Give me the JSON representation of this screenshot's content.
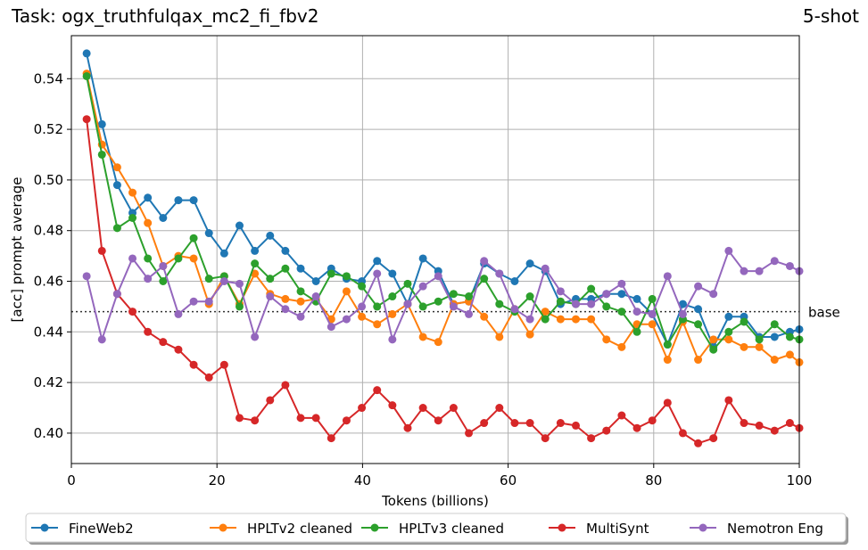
{
  "title": "Task: ogx_truthfulqax_mc2_fi_fbv2",
  "shots": "5-shot",
  "chart_data": {
    "type": "line",
    "xlabel": "Tokens (billions)",
    "ylabel": "[acc] prompt average",
    "xlim": [
      0,
      100
    ],
    "ylim": [
      0.388,
      0.557
    ],
    "xticks": [
      0,
      20,
      40,
      60,
      80,
      100
    ],
    "yticks": [
      0.4,
      0.42,
      0.44,
      0.46,
      0.48,
      0.5,
      0.52,
      0.54
    ],
    "grid": true,
    "legend_position": "bottom",
    "baseline": {
      "label": "base",
      "value": 0.448
    },
    "x": [
      2.1,
      4.2,
      6.3,
      8.4,
      10.5,
      12.6,
      14.7,
      16.8,
      18.9,
      21,
      23.1,
      25.2,
      27.3,
      29.4,
      31.5,
      33.6,
      35.7,
      37.8,
      39.9,
      42,
      44.1,
      46.2,
      48.3,
      50.4,
      52.5,
      54.6,
      56.7,
      58.8,
      60.9,
      63,
      65.1,
      67.2,
      69.3,
      71.4,
      73.5,
      75.6,
      77.7,
      79.8,
      81.9,
      84,
      86.1,
      88.2,
      90.3,
      92.4,
      94.5,
      96.6,
      98.7,
      100
    ],
    "series": [
      {
        "name": "FineWeb2",
        "color": "#1f77b4",
        "values": [
          0.55,
          0.522,
          0.498,
          0.487,
          0.493,
          0.485,
          0.492,
          0.492,
          0.479,
          0.471,
          0.482,
          0.472,
          0.478,
          0.472,
          0.465,
          0.46,
          0.465,
          0.461,
          0.46,
          0.468,
          0.463,
          0.451,
          0.469,
          0.464,
          0.451,
          0.452,
          0.467,
          0.463,
          0.46,
          0.467,
          0.464,
          0.451,
          0.453,
          0.453,
          0.455,
          0.455,
          0.453,
          0.447,
          0.435,
          0.451,
          0.449,
          0.434,
          0.446,
          0.446,
          0.438,
          0.438,
          0.44,
          0.441
        ]
      },
      {
        "name": "HPLTv2 cleaned",
        "color": "#ff7f0e",
        "values": [
          0.542,
          0.514,
          0.505,
          0.495,
          0.483,
          0.466,
          0.47,
          0.469,
          0.451,
          0.462,
          0.451,
          0.463,
          0.455,
          0.453,
          0.452,
          0.453,
          0.445,
          0.456,
          0.446,
          0.443,
          0.447,
          0.451,
          0.438,
          0.436,
          0.451,
          0.452,
          0.446,
          0.438,
          0.449,
          0.439,
          0.448,
          0.445,
          0.445,
          0.445,
          0.437,
          0.434,
          0.443,
          0.443,
          0.429,
          0.444,
          0.429,
          0.437,
          0.437,
          0.434,
          0.434,
          0.429,
          0.431,
          0.428
        ]
      },
      {
        "name": "HPLTv3 cleaned",
        "color": "#2ca02c",
        "values": [
          0.541,
          0.51,
          0.481,
          0.485,
          0.469,
          0.46,
          0.469,
          0.477,
          0.461,
          0.462,
          0.45,
          0.467,
          0.461,
          0.465,
          0.456,
          0.452,
          0.463,
          0.462,
          0.458,
          0.45,
          0.454,
          0.459,
          0.45,
          0.452,
          0.455,
          0.454,
          0.461,
          0.451,
          0.448,
          0.454,
          0.445,
          0.452,
          0.451,
          0.457,
          0.45,
          0.448,
          0.44,
          0.453,
          0.435,
          0.445,
          0.443,
          0.433,
          0.44,
          0.444,
          0.437,
          0.443,
          0.438,
          0.437
        ]
      },
      {
        "name": "MultiSynt",
        "color": "#d62728",
        "values": [
          0.524,
          0.472,
          0.455,
          0.448,
          0.44,
          0.436,
          0.433,
          0.427,
          0.422,
          0.427,
          0.406,
          0.405,
          0.413,
          0.419,
          0.406,
          0.406,
          0.398,
          0.405,
          0.41,
          0.417,
          0.411,
          0.402,
          0.41,
          0.405,
          0.41,
          0.4,
          0.404,
          0.41,
          0.404,
          0.404,
          0.398,
          0.404,
          0.403,
          0.398,
          0.401,
          0.407,
          0.402,
          0.405,
          0.412,
          0.4,
          0.396,
          0.398,
          0.413,
          0.404,
          0.403,
          0.401,
          0.404,
          0.402
        ]
      },
      {
        "name": "Nemotron Eng",
        "color": "#9467bd",
        "values": [
          0.462,
          0.437,
          0.455,
          0.469,
          0.461,
          0.466,
          0.447,
          0.452,
          0.452,
          0.46,
          0.459,
          0.438,
          0.454,
          0.449,
          0.446,
          0.454,
          0.442,
          0.445,
          0.45,
          0.463,
          0.437,
          0.451,
          0.458,
          0.462,
          0.45,
          0.447,
          0.468,
          0.463,
          0.449,
          0.445,
          0.465,
          0.456,
          0.451,
          0.451,
          0.455,
          0.459,
          0.448,
          0.447,
          0.462,
          0.447,
          0.458,
          0.455,
          0.472,
          0.464,
          0.464,
          0.468,
          0.466,
          0.464
        ]
      }
    ]
  }
}
